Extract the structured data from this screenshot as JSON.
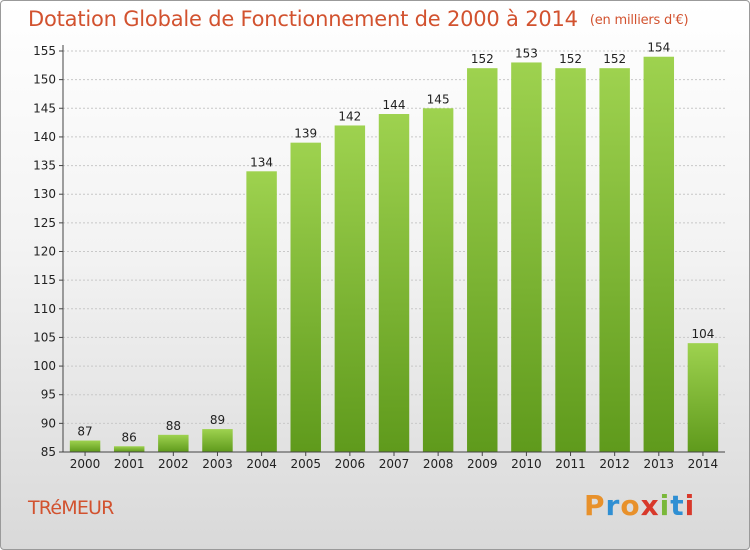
{
  "header": {
    "title": "Dotation Globale de Fonctionnement de 2000 à 2014",
    "subtitle": "(en milliers d'€)"
  },
  "commune": "TRéMEUR",
  "logo": {
    "text": "Proxiti",
    "colors": [
      "#e8912b",
      "#2f8fd3",
      "#e8912b",
      "#d8392b",
      "#7ab83a",
      "#2f8fd3",
      "#d8392b"
    ]
  },
  "chart_data": {
    "type": "bar",
    "categories": [
      "2000",
      "2001",
      "2002",
      "2003",
      "2004",
      "2005",
      "2006",
      "2007",
      "2008",
      "2009",
      "2010",
      "2011",
      "2012",
      "2013",
      "2014"
    ],
    "values": [
      87,
      86,
      88,
      89,
      134,
      139,
      142,
      144,
      145,
      152,
      153,
      152,
      152,
      154,
      104
    ],
    "yticks": [
      85,
      90,
      95,
      100,
      105,
      110,
      115,
      120,
      125,
      130,
      135,
      140,
      145,
      150,
      155
    ],
    "ylim": [
      85,
      155
    ],
    "grid": true,
    "bar_color": "#7db935",
    "xlabel": "",
    "ylabel": ""
  }
}
